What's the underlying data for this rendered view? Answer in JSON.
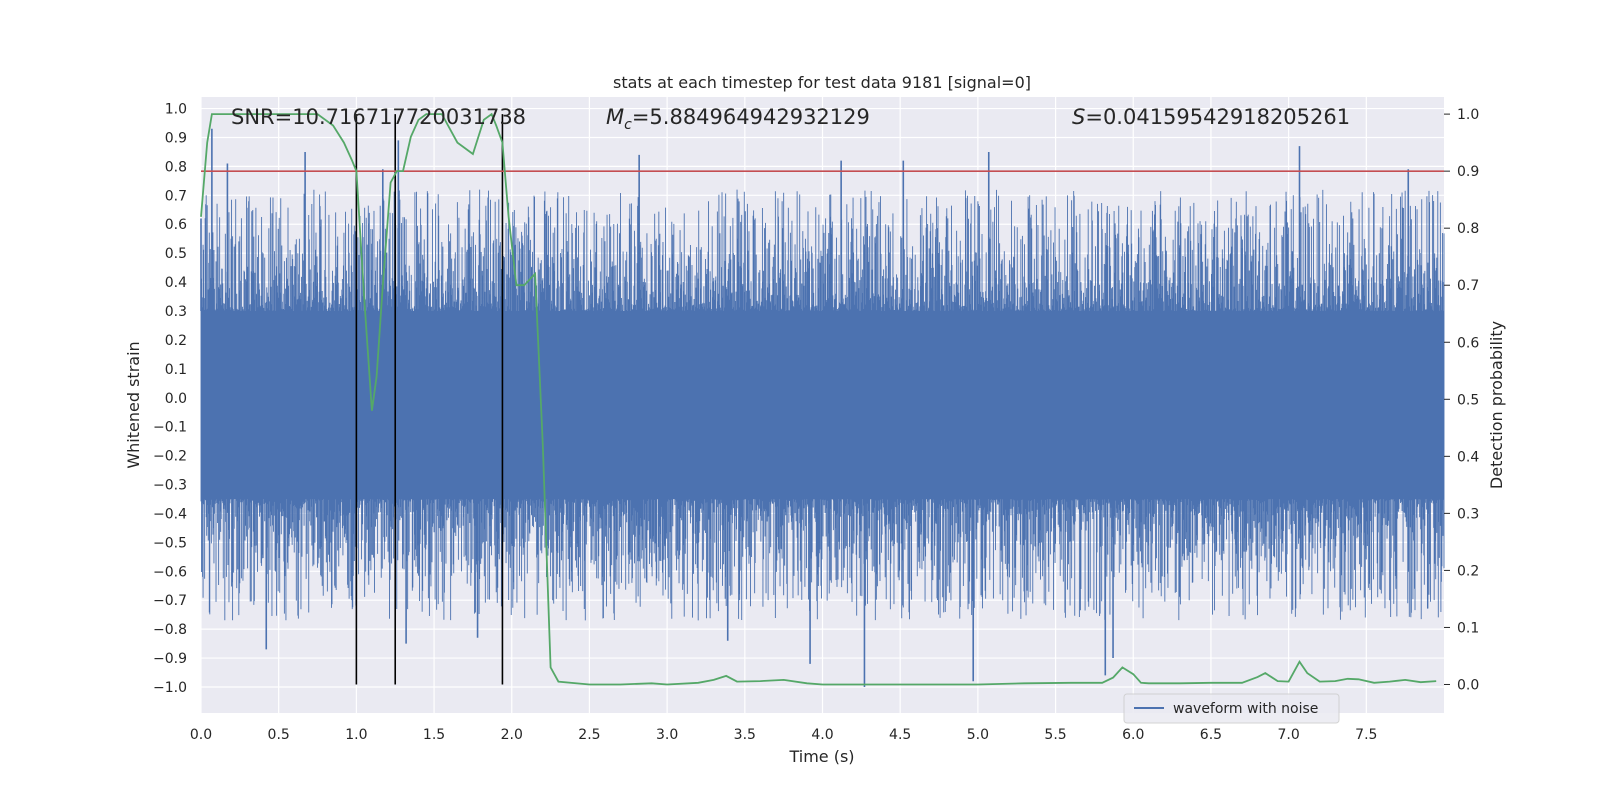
{
  "chart_data": {
    "type": "line",
    "title": "stats at each timestep for test data 9181 [signal=0]",
    "xlabel": "Time (s)",
    "ylabel_left": "Whitened strain",
    "ylabel_right": "Detection probability",
    "xlim": [
      0.0,
      8.0
    ],
    "ylim_left": [
      -1.09,
      1.04
    ],
    "ylim_right": [
      -0.05,
      1.03
    ],
    "x_ticks": [
      "0.0",
      "0.5",
      "1.0",
      "1.5",
      "2.0",
      "2.5",
      "3.0",
      "3.5",
      "4.0",
      "4.5",
      "5.0",
      "5.5",
      "6.0",
      "6.5",
      "7.0",
      "7.5"
    ],
    "x_tick_values": [
      0.0,
      0.5,
      1.0,
      1.5,
      2.0,
      2.5,
      3.0,
      3.5,
      4.0,
      4.5,
      5.0,
      5.5,
      6.0,
      6.5,
      7.0,
      7.5
    ],
    "y_left_ticks": [
      "1.0",
      "0.9",
      "0.8",
      "0.7",
      "0.6",
      "0.5",
      "0.4",
      "0.3",
      "0.2",
      "0.1",
      "0.0",
      "−0.1",
      "−0.2",
      "−0.3",
      "−0.4",
      "−0.5",
      "−0.6",
      "−0.7",
      "−0.8",
      "−0.9",
      "−1.0"
    ],
    "y_left_tick_values": [
      1.0,
      0.9,
      0.8,
      0.7,
      0.6,
      0.5,
      0.4,
      0.3,
      0.2,
      0.1,
      0.0,
      -0.1,
      -0.2,
      -0.3,
      -0.4,
      -0.5,
      -0.6,
      -0.7,
      -0.8,
      -0.9,
      -1.0
    ],
    "y_right_ticks": [
      "1.0",
      "0.9",
      "0.8",
      "0.7",
      "0.6",
      "0.5",
      "0.4",
      "0.3",
      "0.2",
      "0.1",
      "0.0"
    ],
    "y_right_tick_values": [
      1.0,
      0.9,
      0.8,
      0.7,
      0.6,
      0.5,
      0.4,
      0.3,
      0.2,
      0.1,
      0.0
    ],
    "annotations": {
      "snr": "SNR=10.716717720031738",
      "mc_symbol": "M",
      "mc_sub": "c",
      "mc_value": "=5.884964942932129",
      "s_symbol": "S",
      "s_value": "=0.04159542918205261"
    },
    "threshold_right_axis": 0.9,
    "vertical_lines_time": [
      1.0,
      1.25,
      1.94
    ],
    "legend": {
      "label": "waveform with noise",
      "location": "lower-right"
    },
    "colors": {
      "background": "#EAEAF2",
      "grid": "#FFFFFF",
      "waveform": "#4C72B0",
      "probability": "#55A868",
      "threshold": "#C44E52",
      "vertical_lines": "#000000"
    },
    "waveform_envelope": {
      "description_free": true,
      "band_upper": 0.3,
      "band_lower": -0.35,
      "peaks": [
        {
          "t": 0.0,
          "v": 0.62
        },
        {
          "t": 0.07,
          "v": 0.93
        },
        {
          "t": 0.17,
          "v": 0.81
        },
        {
          "t": 0.42,
          "v": -0.87
        },
        {
          "t": 0.67,
          "v": 0.85
        },
        {
          "t": 1.17,
          "v": 0.79
        },
        {
          "t": 1.27,
          "v": 0.89
        },
        {
          "t": 1.32,
          "v": -0.85
        },
        {
          "t": 1.78,
          "v": -0.83
        },
        {
          "t": 2.82,
          "v": 0.84
        },
        {
          "t": 3.39,
          "v": -0.84
        },
        {
          "t": 3.92,
          "v": -0.92
        },
        {
          "t": 4.12,
          "v": 0.82
        },
        {
          "t": 4.27,
          "v": -1.0
        },
        {
          "t": 4.52,
          "v": 0.82
        },
        {
          "t": 4.97,
          "v": -0.98
        },
        {
          "t": 5.07,
          "v": 0.85
        },
        {
          "t": 5.82,
          "v": -0.96
        },
        {
          "t": 5.87,
          "v": -0.9
        },
        {
          "t": 7.07,
          "v": 0.87
        },
        {
          "t": 7.77,
          "v": 0.79
        }
      ]
    },
    "detection_probability": {
      "t": [
        0.0,
        0.04,
        0.07,
        0.1,
        0.2,
        0.4,
        0.6,
        0.75,
        0.85,
        0.92,
        0.97,
        1.0,
        1.05,
        1.1,
        1.13,
        1.17,
        1.22,
        1.26,
        1.3,
        1.35,
        1.4,
        1.45,
        1.55,
        1.65,
        1.75,
        1.82,
        1.87,
        1.9,
        1.94,
        1.98,
        2.03,
        2.08,
        2.15,
        2.2,
        2.25,
        2.3,
        2.5,
        2.7,
        2.9,
        3.0,
        3.2,
        3.3,
        3.38,
        3.45,
        3.6,
        3.75,
        3.9,
        4.0,
        4.3,
        4.5,
        4.8,
        5.0,
        5.3,
        5.6,
        5.8,
        5.87,
        5.93,
        6.0,
        6.05,
        6.1,
        6.3,
        6.5,
        6.7,
        6.8,
        6.85,
        6.93,
        7.0,
        7.07,
        7.12,
        7.2,
        7.3,
        7.38,
        7.45,
        7.55,
        7.65,
        7.75,
        7.85,
        7.95
      ],
      "p": [
        0.82,
        0.95,
        1.0,
        1.0,
        1.0,
        1.0,
        1.0,
        1.0,
        0.98,
        0.95,
        0.92,
        0.9,
        0.68,
        0.48,
        0.54,
        0.7,
        0.88,
        0.9,
        0.9,
        0.96,
        0.99,
        1.0,
        1.0,
        0.95,
        0.93,
        0.99,
        1.0,
        0.98,
        0.95,
        0.82,
        0.7,
        0.7,
        0.72,
        0.42,
        0.03,
        0.005,
        0.0,
        0.0,
        0.002,
        0.0,
        0.003,
        0.008,
        0.015,
        0.005,
        0.006,
        0.008,
        0.002,
        0.0,
        0.0,
        0.0,
        0.0,
        0.0,
        0.002,
        0.003,
        0.003,
        0.012,
        0.03,
        0.018,
        0.003,
        0.002,
        0.002,
        0.003,
        0.003,
        0.013,
        0.02,
        0.006,
        0.005,
        0.04,
        0.02,
        0.005,
        0.006,
        0.01,
        0.009,
        0.003,
        0.005,
        0.008,
        0.004,
        0.006
      ]
    }
  }
}
